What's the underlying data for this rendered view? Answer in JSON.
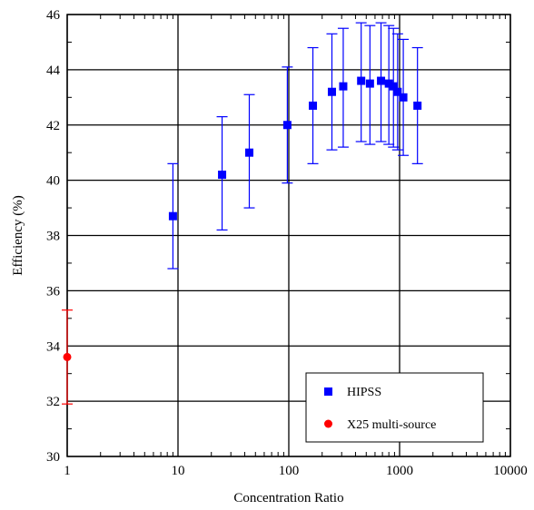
{
  "chart_data": {
    "type": "scatter",
    "title": "",
    "xlabel": "Concentration Ratio",
    "ylabel": "Efficiency (%)",
    "x_scale": "log",
    "xlim": [
      1,
      10000
    ],
    "ylim": [
      30,
      46
    ],
    "grid": true,
    "legend_position": "bottom-right",
    "x_ticks": [
      1,
      10,
      100,
      1000,
      10000
    ],
    "x_tick_labels": [
      "1",
      "10",
      "100",
      "1000",
      "10000"
    ],
    "y_ticks": [
      30,
      32,
      34,
      36,
      38,
      40,
      42,
      44,
      46
    ],
    "y_tick_labels": [
      "30",
      "32",
      "34",
      "36",
      "38",
      "40",
      "42",
      "44",
      "46"
    ],
    "series": [
      {
        "name": "HIPSS",
        "marker": "square",
        "color": "#0000ff",
        "points": [
          {
            "x": 9,
            "y": 38.7,
            "err_low": 36.8,
            "err_high": 40.6
          },
          {
            "x": 25,
            "y": 40.2,
            "err_low": 38.2,
            "err_high": 42.3
          },
          {
            "x": 44,
            "y": 41.0,
            "err_low": 39.0,
            "err_high": 43.1
          },
          {
            "x": 97,
            "y": 42.0,
            "err_low": 39.9,
            "err_high": 44.1
          },
          {
            "x": 165,
            "y": 42.7,
            "err_low": 40.6,
            "err_high": 44.8
          },
          {
            "x": 245,
            "y": 43.2,
            "err_low": 41.1,
            "err_high": 45.3
          },
          {
            "x": 310,
            "y": 43.4,
            "err_low": 41.2,
            "err_high": 45.5
          },
          {
            "x": 450,
            "y": 43.6,
            "err_low": 41.4,
            "err_high": 45.7
          },
          {
            "x": 540,
            "y": 43.5,
            "err_low": 41.3,
            "err_high": 45.6
          },
          {
            "x": 680,
            "y": 43.6,
            "err_low": 41.4,
            "err_high": 45.7
          },
          {
            "x": 800,
            "y": 43.5,
            "err_low": 41.3,
            "err_high": 45.6
          },
          {
            "x": 880,
            "y": 43.4,
            "err_low": 41.2,
            "err_high": 45.5
          },
          {
            "x": 960,
            "y": 43.2,
            "err_low": 41.1,
            "err_high": 45.3
          },
          {
            "x": 1080,
            "y": 43.0,
            "err_low": 40.9,
            "err_high": 45.1
          },
          {
            "x": 1450,
            "y": 42.7,
            "err_low": 40.6,
            "err_high": 44.8
          }
        ]
      },
      {
        "name": "X25 multi-source",
        "marker": "circle",
        "color": "#ff0000",
        "points": [
          {
            "x": 1,
            "y": 33.6,
            "err_low": 31.9,
            "err_high": 35.3
          }
        ]
      }
    ]
  }
}
